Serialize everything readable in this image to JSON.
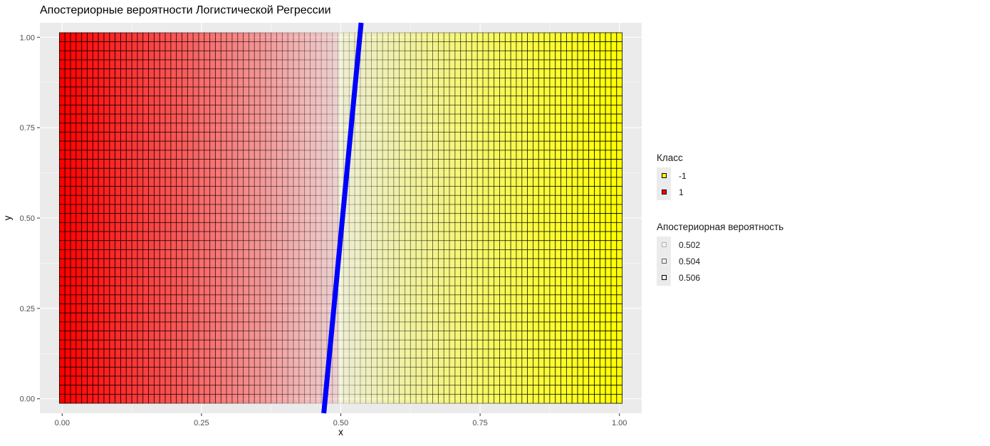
{
  "chart_data": {
    "type": "heatmap",
    "title": "Апостериорные вероятности Логистической Регрессии",
    "xlabel": "x",
    "ylabel": "y",
    "xlim": [
      -0.04,
      1.04
    ],
    "ylim": [
      -0.04,
      1.04
    ],
    "x_ticks": [
      "0.00",
      "0.25",
      "0.50",
      "0.75",
      "1.00"
    ],
    "y_ticks": [
      "0.00",
      "0.25",
      "0.50",
      "0.75",
      "1.00"
    ],
    "grid": true,
    "grid_x_range": [
      0,
      1
    ],
    "grid_y_range": [
      0,
      1
    ],
    "grid_cols": 101,
    "grid_rows": 41,
    "class_boundary_x": 0.5,
    "decision_line": {
      "color": "#0000ff",
      "x_at_y0": 0.472,
      "x_at_y1": 0.534
    },
    "class_colors": {
      "-1": "#ffff00",
      "1": "#ff0000"
    },
    "legend_placement": "right"
  },
  "legend_class": {
    "title": "Класс",
    "items": [
      {
        "label": "-1",
        "color": "#ffff00"
      },
      {
        "label": "1",
        "color": "#ff0000"
      }
    ]
  },
  "legend_prob": {
    "title": "Апостериорная вероятность",
    "items": [
      {
        "label": "0.502",
        "alpha": 0.25
      },
      {
        "label": "0.504",
        "alpha": 0.6
      },
      {
        "label": "0.506",
        "alpha": 1.0
      }
    ]
  }
}
